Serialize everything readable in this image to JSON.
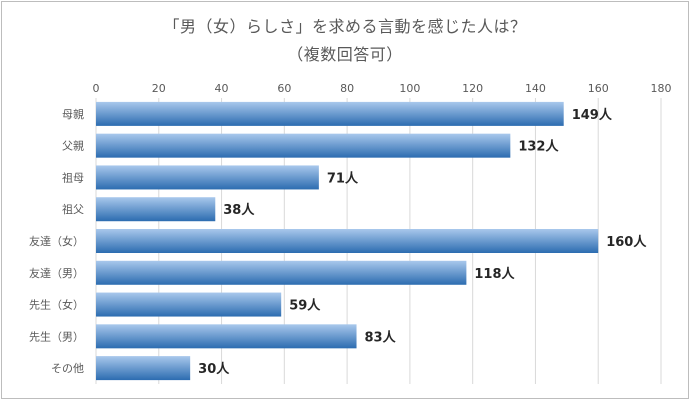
{
  "chart_data": {
    "type": "bar",
    "orientation": "horizontal",
    "title": "「男（女）らしさ」を求める言動を感じた人は？",
    "subtitle": "（複数回答可）",
    "categories": [
      "母親",
      "父親",
      "祖母",
      "祖父",
      "友達（女）",
      "友達（男）",
      "先生（女）",
      "先生（男）",
      "その他"
    ],
    "values": [
      149,
      132,
      71,
      38,
      160,
      118,
      59,
      83,
      30
    ],
    "data_labels": [
      "149人",
      "132人",
      "71人",
      "38人",
      "160人",
      "118人",
      "59人",
      "83人",
      "30人"
    ],
    "xlim": [
      0,
      180
    ],
    "xticks": [
      0,
      20,
      40,
      60,
      80,
      100,
      120,
      140,
      160,
      180
    ],
    "x_axis_position": "top",
    "grid": true,
    "bar_color_light": "#a9c8ec",
    "bar_color_dark": "#2c6cb0",
    "gridline_color": "#d9d9d9"
  }
}
